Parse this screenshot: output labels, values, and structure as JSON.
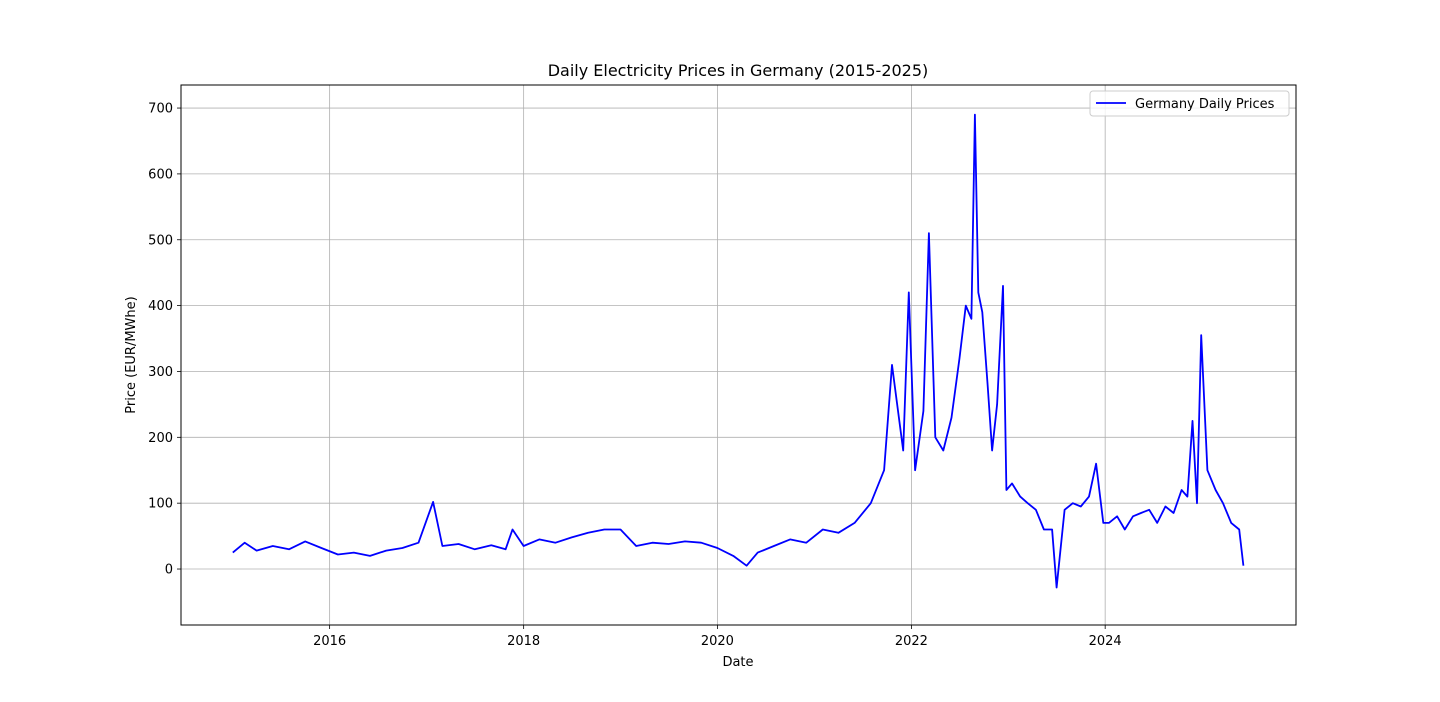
{
  "chart_data": {
    "type": "line",
    "title": "Daily Electricity Prices in Germany (2015-2025)",
    "xlabel": "Date",
    "ylabel": "Price (EUR/MWhe)",
    "xlim": [
      "2014-06-20",
      "2025-12-20"
    ],
    "ylim": [
      -85,
      735
    ],
    "x_ticks": [
      "2016",
      "2018",
      "2020",
      "2022",
      "2024"
    ],
    "y_ticks": [
      0,
      100,
      200,
      300,
      400,
      500,
      600,
      700
    ],
    "grid": true,
    "legend_position": "top-right",
    "line_color": "#0000ff",
    "series": [
      {
        "name": "Germany Daily Prices",
        "x": [
          "2015-01-01",
          "2015-02-15",
          "2015-04-01",
          "2015-06-01",
          "2015-08-01",
          "2015-10-01",
          "2015-12-01",
          "2016-02-01",
          "2016-04-01",
          "2016-06-01",
          "2016-08-01",
          "2016-10-01",
          "2016-12-01",
          "2017-01-25",
          "2017-03-01",
          "2017-05-01",
          "2017-07-01",
          "2017-09-01",
          "2017-10-25",
          "2017-11-20",
          "2018-01-01",
          "2018-03-01",
          "2018-05-01",
          "2018-07-01",
          "2018-09-01",
          "2018-11-01",
          "2019-01-01",
          "2019-03-01",
          "2019-05-01",
          "2019-07-01",
          "2019-09-01",
          "2019-11-01",
          "2020-01-01",
          "2020-03-01",
          "2020-04-20",
          "2020-06-01",
          "2020-08-01",
          "2020-10-01",
          "2020-12-01",
          "2021-02-01",
          "2021-04-01",
          "2021-06-01",
          "2021-08-01",
          "2021-09-20",
          "2021-10-20",
          "2021-12-01",
          "2021-12-22",
          "2022-01-15",
          "2022-02-15",
          "2022-03-08",
          "2022-04-01",
          "2022-05-01",
          "2022-06-01",
          "2022-07-01",
          "2022-07-25",
          "2022-08-15",
          "2022-08-28",
          "2022-09-10",
          "2022-09-25",
          "2022-10-15",
          "2022-11-01",
          "2022-11-20",
          "2022-12-12",
          "2022-12-25",
          "2023-01-15",
          "2023-02-15",
          "2023-03-15",
          "2023-04-15",
          "2023-05-15",
          "2023-06-15",
          "2023-07-02",
          "2023-08-01",
          "2023-09-01",
          "2023-10-01",
          "2023-11-01",
          "2023-11-28",
          "2023-12-25",
          "2024-01-15",
          "2024-02-15",
          "2024-03-15",
          "2024-04-15",
          "2024-05-15",
          "2024-06-15",
          "2024-07-15",
          "2024-08-15",
          "2024-09-15",
          "2024-10-15",
          "2024-11-06",
          "2024-11-25",
          "2024-12-12",
          "2024-12-28",
          "2025-01-20",
          "2025-02-20",
          "2025-03-20",
          "2025-04-20",
          "2025-05-20",
          "2025-06-05"
        ],
        "y": [
          25,
          40,
          28,
          35,
          30,
          42,
          32,
          22,
          25,
          20,
          28,
          32,
          40,
          102,
          35,
          38,
          30,
          36,
          30,
          60,
          35,
          45,
          40,
          48,
          55,
          60,
          60,
          35,
          40,
          38,
          42,
          40,
          32,
          20,
          5,
          25,
          35,
          45,
          40,
          60,
          55,
          70,
          100,
          150,
          310,
          180,
          420,
          150,
          240,
          510,
          200,
          180,
          230,
          320,
          400,
          380,
          690,
          420,
          390,
          280,
          180,
          250,
          430,
          120,
          130,
          110,
          100,
          90,
          60,
          60,
          -28,
          90,
          100,
          95,
          110,
          160,
          70,
          70,
          80,
          60,
          80,
          85,
          90,
          70,
          95,
          85,
          120,
          110,
          225,
          100,
          355,
          150,
          120,
          100,
          70,
          60,
          5
        ]
      }
    ]
  }
}
